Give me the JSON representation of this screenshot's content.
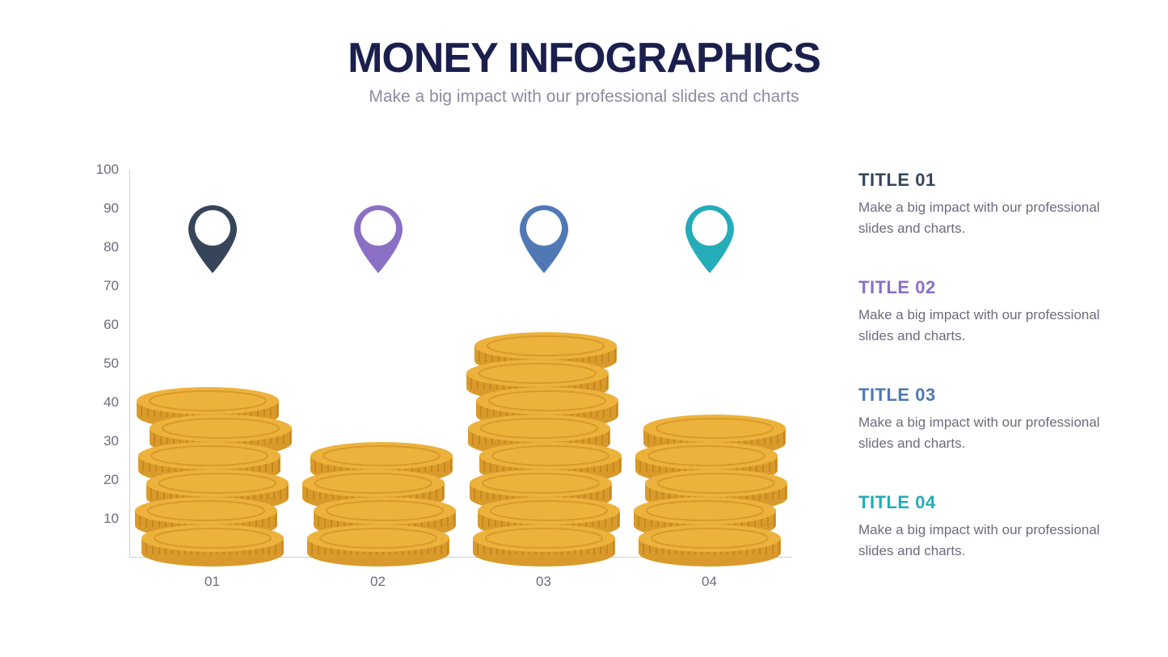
{
  "header": {
    "title": "MONEY INFOGRAPHICS",
    "subtitle": "Make a big impact with our professional slides and charts",
    "title_color": "#1a1f4d",
    "subtitle_color": "#8a8d9f"
  },
  "chart": {
    "type": "bar",
    "ylim": [
      0,
      100
    ],
    "yticks": [
      10,
      20,
      30,
      40,
      50,
      60,
      70,
      80,
      90,
      100
    ],
    "axis_color": "#cfcfcf",
    "tick_color": "#6a6d7c",
    "tick_fontsize": 17,
    "coin_top_color": "#edb23c",
    "coin_side_color": "#d99a2b",
    "coin_ridge_color": "#c7881f",
    "background_color": "#ffffff",
    "pin_inner_color": "#ffffff",
    "columns": [
      {
        "x_label": "01",
        "coins": 6,
        "offsets": [
          0,
          -8,
          6,
          -4,
          10,
          -6
        ],
        "pin_color": "#36455a"
      },
      {
        "x_label": "02",
        "coins": 4,
        "offsets": [
          0,
          8,
          -6,
          4
        ],
        "pin_color": "#8b6fc4"
      },
      {
        "x_label": "03",
        "coins": 8,
        "offsets": [
          0,
          6,
          -4,
          8,
          -6,
          4,
          -8,
          2
        ],
        "pin_color": "#4f78b5"
      },
      {
        "x_label": "04",
        "coins": 5,
        "offsets": [
          0,
          -6,
          8,
          -4,
          6
        ],
        "pin_color": "#24acb8"
      }
    ],
    "coin_vertical_gap": 34
  },
  "legend": {
    "desc_color": "#6a6d7c",
    "items": [
      {
        "title": "TITLE 01",
        "color": "#36455a",
        "desc": "Make a big impact with our professional slides and charts."
      },
      {
        "title": "TITLE 02",
        "color": "#8b6fc4",
        "desc": "Make a big impact with our professional slides and charts."
      },
      {
        "title": "TITLE 03",
        "color": "#4f78b5",
        "desc": "Make a big impact with our professional slides and charts."
      },
      {
        "title": "TITLE 04",
        "color": "#24acb8",
        "desc": "Make a big impact with our professional slides and charts."
      }
    ]
  }
}
